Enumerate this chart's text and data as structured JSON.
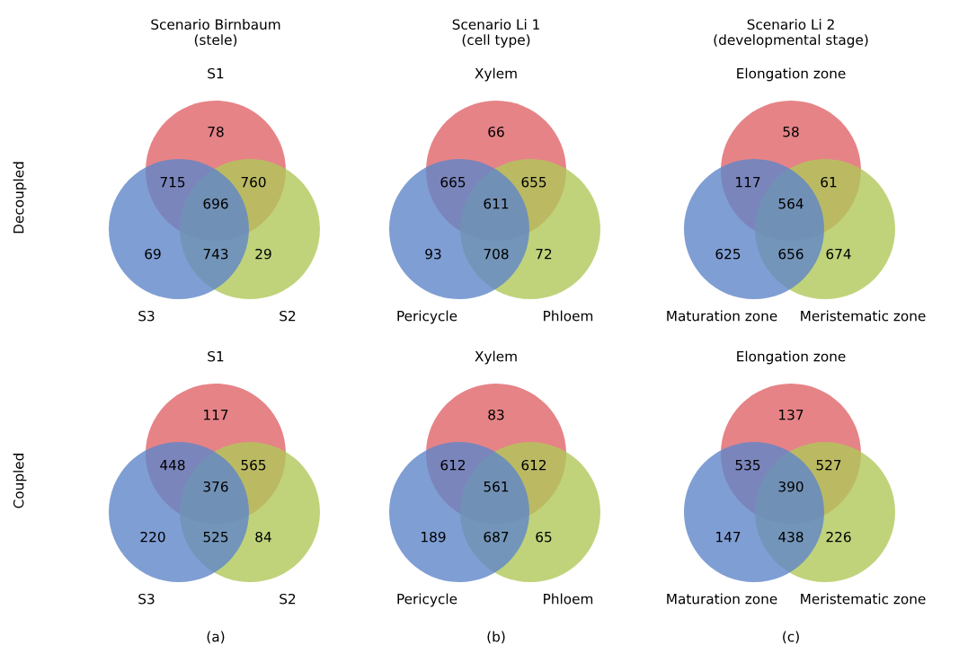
{
  "chart_data": [
    {
      "type": "other",
      "title": "Scenario Birnbaum\n(stele)",
      "ylabel": "Decoupled",
      "categories": [
        null,
        null,
        null,
        null,
        null,
        null,
        null
      ],
      "data_labels": true,
      "annotations": [
        "S1",
        "S2",
        "S3"
      ],
      "values": [
        78,
        715,
        760,
        696,
        69,
        743,
        29
      ]
    },
    {
      "type": "other",
      "title": "Scenario Li 1\n(cell type)",
      "categories": [
        null,
        null,
        null,
        null,
        null,
        null,
        null
      ],
      "data_labels": true,
      "annotations": [
        "Xylem",
        "Phloem",
        "Pericycle"
      ],
      "values": [
        66,
        665,
        655,
        611,
        93,
        708,
        72
      ]
    },
    {
      "type": "other",
      "title": "Scenario Li 2\n(developmental stage)",
      "categories": [
        null,
        null,
        null,
        null,
        null,
        null,
        null
      ],
      "data_labels": true,
      "annotations": [
        "Elongation zone",
        "Meristematic zone",
        "Maturation zone"
      ],
      "values": [
        58,
        117,
        61,
        564,
        625,
        656,
        674
      ]
    },
    {
      "type": "other",
      "ylabel": "Coupled",
      "categories": [
        null,
        null,
        null,
        null,
        null,
        null,
        null
      ],
      "data_labels": true,
      "annotations": [
        "S1",
        "S2",
        "S3",
        "(a)"
      ],
      "values": [
        117,
        448,
        565,
        376,
        220,
        525,
        84
      ]
    },
    {
      "type": "other",
      "categories": [
        null,
        null,
        null,
        null,
        null,
        null,
        null
      ],
      "data_labels": true,
      "annotations": [
        "Xylem",
        "Phloem",
        "Pericycle",
        "(b)"
      ],
      "values": [
        83,
        612,
        612,
        561,
        189,
        687,
        65
      ]
    },
    {
      "type": "other",
      "categories": [
        null,
        null,
        null,
        null,
        null,
        null,
        null
      ],
      "data_labels": true,
      "annotations": [
        "Elongation zone",
        "Meristematic zone",
        "Maturation zone",
        "(c)"
      ],
      "values": [
        137,
        535,
        527,
        390,
        147,
        438,
        226
      ]
    }
  ]
}
